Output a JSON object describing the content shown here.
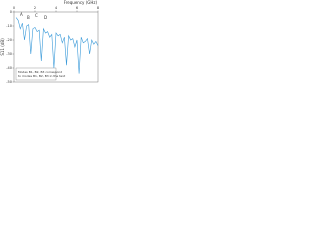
{
  "chart_data": {
    "type": "line",
    "x_label": "Frequency (GHz)",
    "y_label": "S11 (dB)",
    "x": [
      0.2,
      0.4,
      0.6,
      0.8,
      1.0,
      1.2,
      1.4,
      1.6,
      1.8,
      2.0,
      2.2,
      2.4,
      2.6,
      2.8,
      3.0,
      3.2,
      3.4,
      3.6,
      3.8,
      4.0,
      4.2,
      4.4,
      4.6,
      4.8,
      5.0,
      5.2,
      5.4,
      5.6,
      5.8,
      6.0,
      6.2,
      6.4,
      6.6,
      6.8,
      7.0,
      7.2,
      7.4,
      7.6,
      7.8,
      8.0
    ],
    "series": [
      {
        "name": "S11",
        "color": "#3a9ad9",
        "values": [
          -4,
          -6,
          -12,
          -8,
          -20,
          -10,
          -9,
          -30,
          -12,
          -11,
          -14,
          -13,
          -35,
          -12,
          -15,
          -14,
          -18,
          -16,
          -40,
          -15,
          -17,
          -16,
          -22,
          -18,
          -38,
          -17,
          -20,
          -19,
          -25,
          -20,
          -44,
          -18,
          -22,
          -21,
          -19,
          -30,
          -20,
          -23,
          -21,
          -24
        ]
      }
    ],
    "xlim": [
      0,
      8
    ],
    "xticks": [
      0,
      2,
      4,
      6,
      8
    ],
    "ylim": [
      -50,
      0
    ],
    "yticks": [
      0,
      -10,
      -20,
      -30,
      -40,
      -50
    ],
    "peak_labels": [
      "A",
      "B",
      "C",
      "D"
    ],
    "annotation": [
      "Modes B1, B2, B3 correspond",
      "to modes B1, B2, B3 in the text"
    ]
  }
}
